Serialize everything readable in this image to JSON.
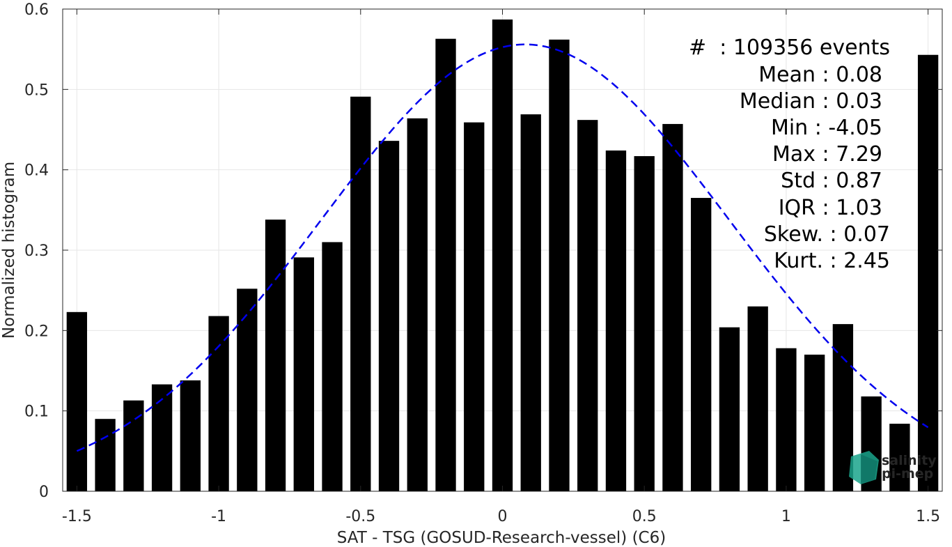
{
  "chart_data": {
    "type": "bar",
    "xlabel": "SAT - TSG (GOSUD-Research-vessel) (C6)",
    "ylabel": "Normalized histogram",
    "xlim": [
      -1.55,
      1.55
    ],
    "ylim": [
      0,
      0.6
    ],
    "x_ticks": [
      -1.5,
      -1,
      -0.5,
      0,
      0.5,
      1,
      1.5
    ],
    "x_tick_labels": [
      "-1.5",
      "-1",
      "-0.5",
      "0",
      "0.5",
      "1",
      "1.5"
    ],
    "y_ticks": [
      0,
      0.1,
      0.2,
      0.3,
      0.4,
      0.5,
      0.6
    ],
    "y_tick_labels": [
      "0",
      "0.1",
      "0.2",
      "0.3",
      "0.4",
      "0.5",
      "0.6"
    ],
    "grid": true,
    "bar_color": "#000000",
    "bins": [
      -1.5,
      -1.4,
      -1.3,
      -1.2,
      -1.1,
      -1.0,
      -0.9,
      -0.8,
      -0.7,
      -0.6,
      -0.5,
      -0.4,
      -0.3,
      -0.2,
      -0.1,
      0.0,
      0.1,
      0.2,
      0.3,
      0.4,
      0.5,
      0.6,
      0.7,
      0.8,
      0.9,
      1.0,
      1.1,
      1.2,
      1.3,
      1.4,
      1.5
    ],
    "values": [
      0.223,
      0.09,
      0.113,
      0.133,
      0.138,
      0.218,
      0.252,
      0.338,
      0.291,
      0.31,
      0.491,
      0.436,
      0.464,
      0.563,
      0.459,
      0.587,
      0.469,
      0.562,
      0.462,
      0.424,
      0.417,
      0.457,
      0.365,
      0.204,
      0.23,
      0.178,
      0.17,
      0.208,
      0.118,
      0.084,
      0.543
    ],
    "fit": {
      "type": "gaussian",
      "color": "#0000ee",
      "style": "dashed",
      "mean": 0.08,
      "std": 0.72,
      "peak": 0.556,
      "x_range": [
        -1.5,
        1.5
      ]
    },
    "annotations": [
      "#  : 109356 events",
      "Mean : 0.08",
      "Median : 0.03",
      "Min : -4.05",
      "Max : 7.29",
      "Std : 0.87",
      "IQR : 1.03",
      "Skew. : 0.07",
      "Kurt. : 2.45"
    ]
  },
  "logo": {
    "line1": "salinity",
    "line2": "pi-mep",
    "color": "#1aa58c",
    "color_dark": "#0e6f63"
  }
}
